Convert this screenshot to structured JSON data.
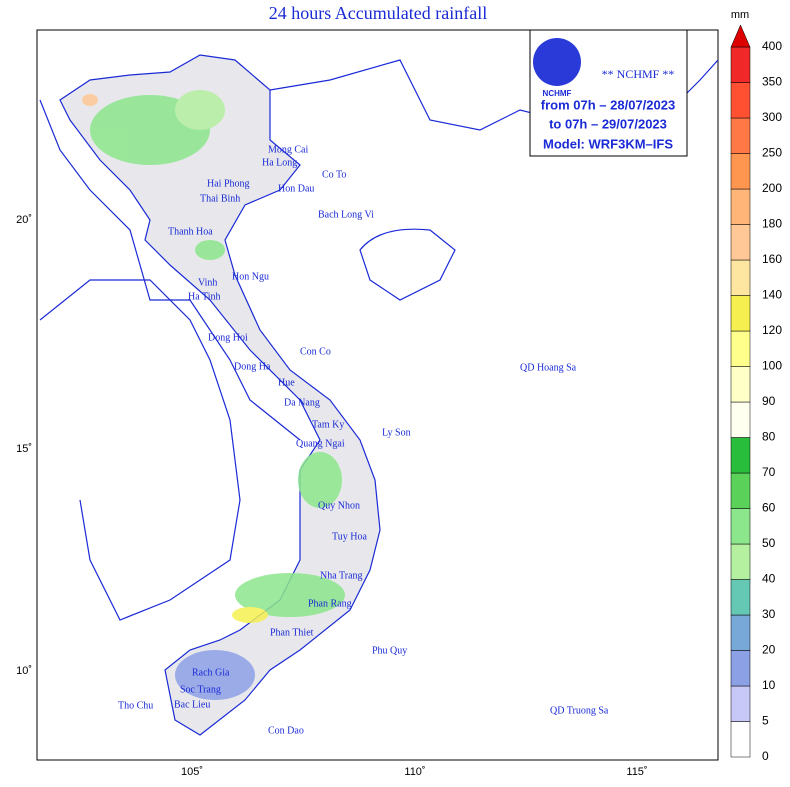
{
  "title": "24 hours Accumulated rainfall",
  "info": {
    "logo_text": "NCHMF",
    "agency": "** NCHMF **",
    "from": "from 07h – 28/07/2023",
    "to": "to 07h – 29/07/2023",
    "model": "Model: WRF3KM–IFS"
  },
  "axes": {
    "lat_labels": [
      "20˚",
      "15˚",
      "10˚"
    ],
    "lon_labels": [
      "105˚",
      "110˚",
      "115˚"
    ]
  },
  "colorbar": {
    "unit": "mm",
    "labels": [
      "0",
      "5",
      "10",
      "20",
      "30",
      "40",
      "50",
      "60",
      "70",
      "80",
      "90",
      "100",
      "120",
      "140",
      "160",
      "180",
      "200",
      "250",
      "300",
      "350",
      "400"
    ],
    "colors": [
      "#ffffff",
      "#c8c8f8",
      "#8ca0e6",
      "#78a8d8",
      "#64c8b4",
      "#b4f0a0",
      "#8ce68c",
      "#5ad25a",
      "#28be3c",
      "#fffff0",
      "#ffffc8",
      "#ffff8c",
      "#f5f050",
      "#ffe6a0",
      "#ffc896",
      "#ffb478",
      "#ff9650",
      "#ff7846",
      "#ff5032",
      "#f02828",
      "#dc0000"
    ]
  },
  "places": [
    "Mong Cai",
    "Ha Long",
    "Co To",
    "Hai Phong",
    "Hon Dau",
    "Thai Binh",
    "Bach Long Vi",
    "Thanh Hoa",
    "Hon Ngu",
    "Vinh",
    "Ha Tinh",
    "Dong Hoi",
    "Con Co",
    "Dong Ha",
    "Hue",
    "Da Nang",
    "QD Hoang Sa",
    "Tam Ky",
    "Ly Son",
    "Quang Ngai",
    "Quy Nhon",
    "Tuy Hoa",
    "Nha Trang",
    "Phan Rang",
    "Phan Thiet",
    "Phu Quy",
    "Rach Gia",
    "Tho Chu",
    "Soc Trang",
    "Bac Lieu",
    "Con Dao",
    "QD Truong Sa"
  ]
}
